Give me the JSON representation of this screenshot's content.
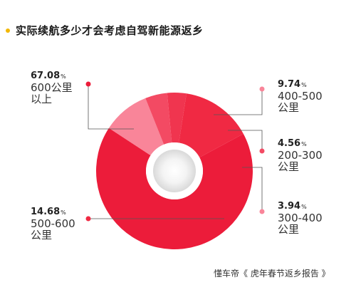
{
  "header": {
    "title": "实际续航多少才会考虑自驾新能源返乡"
  },
  "source": "懂车帝《 虎年春节返乡报告 》",
  "colors": {
    "accent_dot": "#f2b705"
  },
  "chart_data": {
    "type": "pie",
    "variant": "donut",
    "title": "实际续航多少才会考虑自驾新能源返乡",
    "unit": "%",
    "slices": [
      {
        "label": "600公里\n以上",
        "value": 67.08,
        "value_text": "67.08",
        "color": "#ec1c3a"
      },
      {
        "label": "400-500\n公里",
        "value": 9.74,
        "value_text": "9.74",
        "color": "#f98599"
      },
      {
        "label": "200-300\n公里",
        "value": 4.56,
        "value_text": "4.56",
        "color": "#f34a63"
      },
      {
        "label": "300-400\n公里",
        "value": 3.94,
        "value_text": "3.94",
        "color": "#f0354f"
      },
      {
        "label": "500-600\n公里",
        "value": 14.68,
        "value_text": "14.68",
        "color": "#f02943"
      }
    ],
    "legend": "callouts"
  }
}
